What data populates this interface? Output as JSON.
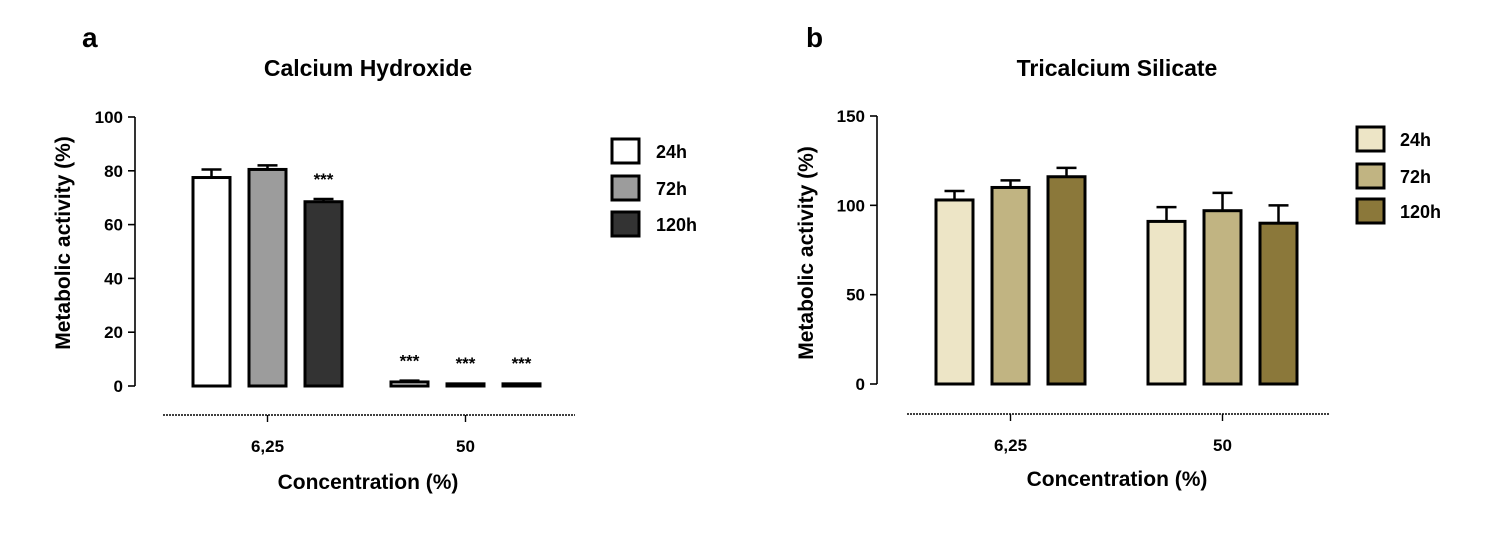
{
  "panels": [
    {
      "letter": "a"
    },
    {
      "letter": "b"
    }
  ],
  "chart_data": [
    {
      "type": "bar",
      "title": "Calcium Hydroxide",
      "xlabel": "Concentration (%)",
      "ylabel": "Metabolic activity (%)",
      "categories": [
        "6,25",
        "50"
      ],
      "ylim": [
        0,
        100
      ],
      "yticks": [
        0,
        20,
        40,
        60,
        80,
        100
      ],
      "legend_position": "right",
      "error_bars": true,
      "series": [
        {
          "name": "24h",
          "color": "#ffffff",
          "values": [
            77.5,
            1.5
          ],
          "errors": [
            3.0,
            0.5
          ],
          "annotations": [
            "",
            "***"
          ]
        },
        {
          "name": "72h",
          "color": "#9c9c9c",
          "values": [
            80.5,
            0.8
          ],
          "errors": [
            1.5,
            0.3
          ],
          "annotations": [
            "",
            "***"
          ]
        },
        {
          "name": "120h",
          "color": "#333333",
          "values": [
            68.5,
            0.8
          ],
          "errors": [
            1.0,
            0.3
          ],
          "annotations": [
            "***",
            "***"
          ]
        }
      ]
    },
    {
      "type": "bar",
      "title": "Tricalcium Silicate",
      "xlabel": "Concentration (%)",
      "ylabel": "Metabolic activity (%)",
      "categories": [
        "6,25",
        "50"
      ],
      "ylim": [
        0,
        150
      ],
      "yticks": [
        0,
        50,
        100,
        150
      ],
      "legend_position": "right",
      "error_bars": true,
      "series": [
        {
          "name": "24h",
          "color": "#ede5c6",
          "values": [
            103,
            91
          ],
          "errors": [
            5,
            8
          ],
          "annotations": [
            "",
            ""
          ]
        },
        {
          "name": "72h",
          "color": "#c1b482",
          "values": [
            110,
            97
          ],
          "errors": [
            4,
            10
          ],
          "annotations": [
            "",
            ""
          ]
        },
        {
          "name": "120h",
          "color": "#8b783a",
          "values": [
            116,
            90
          ],
          "errors": [
            5,
            10
          ],
          "annotations": [
            "",
            ""
          ]
        }
      ]
    }
  ]
}
